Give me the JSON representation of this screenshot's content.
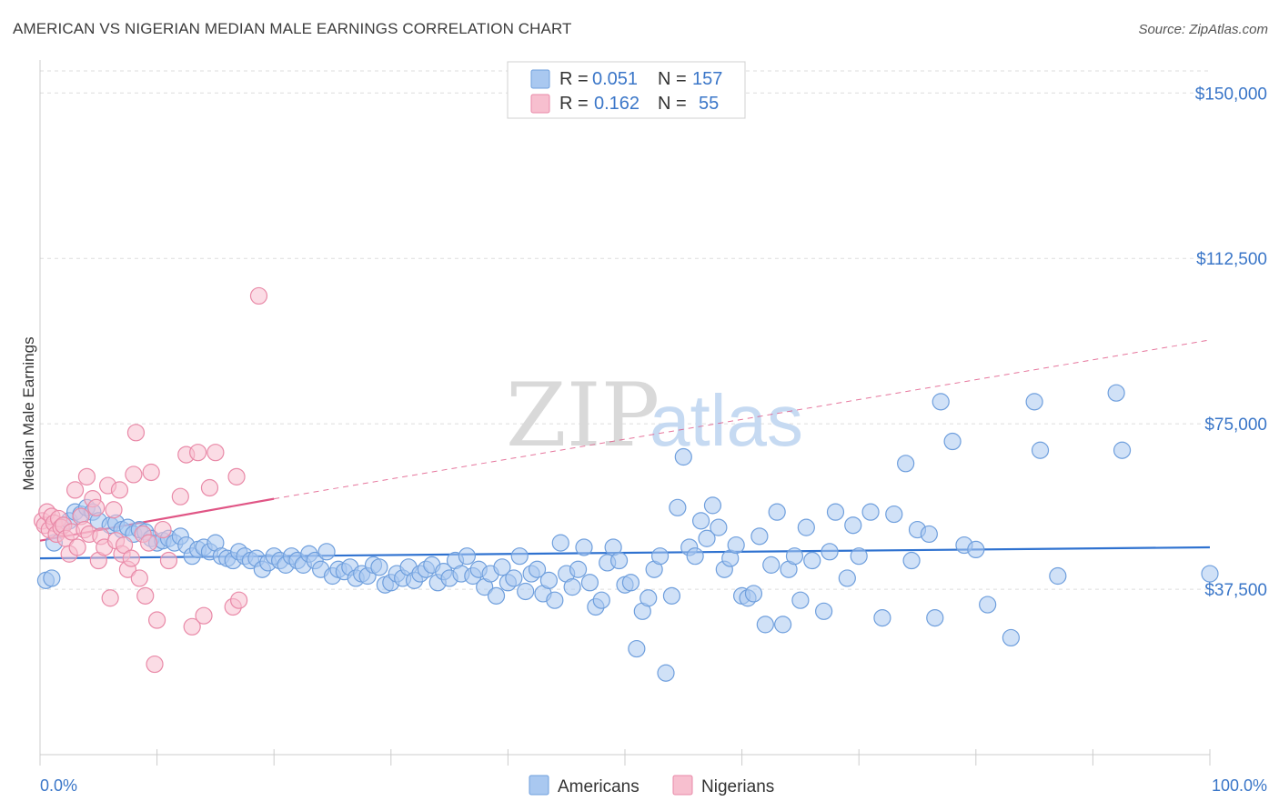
{
  "title": "AMERICAN VS NIGERIAN MEDIAN MALE EARNINGS CORRELATION CHART",
  "source": "Source: ZipAtlas.com",
  "watermark": {
    "zip": "ZIP",
    "atlas": "atlas"
  },
  "colors": {
    "americans_fill": "#a9c8f0",
    "americans_stroke": "#6f9fdd",
    "americans_line": "#2f72d0",
    "nigerians_fill": "#f7bfcf",
    "nigerians_stroke": "#e98aa8",
    "nigerians_line": "#e05585",
    "axis_text": "#3a76c8",
    "grid": "#dddddd"
  },
  "legend": {
    "r_label": "R =",
    "n_label": "N =",
    "rows": [
      {
        "series": "Americans",
        "r": "0.051",
        "n": "157"
      },
      {
        "series": "Nigerians",
        "r": "0.162",
        "n": "55"
      }
    ]
  },
  "chart_data": {
    "type": "scatter",
    "title": "AMERICAN VS NIGERIAN MEDIAN MALE EARNINGS CORRELATION CHART",
    "xlabel": "",
    "ylabel": "Median Male Earnings",
    "xlim": [
      0,
      100
    ],
    "ylim": [
      0,
      155000
    ],
    "x_tick_labels": [
      "0.0%",
      "100.0%"
    ],
    "y_ticks": [
      37500,
      75000,
      112500,
      150000
    ],
    "y_tick_labels": [
      "$37,500",
      "$75,000",
      "$112,500",
      "$150,000"
    ],
    "grid": true,
    "legend_position": "top-center",
    "series": [
      {
        "name": "Americans",
        "trend": {
          "x": [
            0,
            100
          ],
          "y": [
            44500,
            47000
          ],
          "style": "solid"
        },
        "points": [
          [
            0.5,
            39500
          ],
          [
            1,
            40000
          ],
          [
            1.2,
            48000
          ],
          [
            2,
            52000
          ],
          [
            2.5,
            53000
          ],
          [
            3,
            55000
          ],
          [
            3.5,
            54500
          ],
          [
            4,
            56000
          ],
          [
            4.5,
            55000
          ],
          [
            5,
            53000
          ],
          [
            6,
            52000
          ],
          [
            6.5,
            52500
          ],
          [
            7,
            51000
          ],
          [
            7.5,
            51500
          ],
          [
            8,
            50000
          ],
          [
            8.5,
            51000
          ],
          [
            9,
            50500
          ],
          [
            9.5,
            49000
          ],
          [
            10,
            48000
          ],
          [
            10.5,
            48500
          ],
          [
            11,
            49000
          ],
          [
            11.5,
            48000
          ],
          [
            12,
            49500
          ],
          [
            12.5,
            47500
          ],
          [
            13,
            45000
          ],
          [
            13.5,
            46500
          ],
          [
            14,
            47000
          ],
          [
            14.5,
            46000
          ],
          [
            15,
            48000
          ],
          [
            15.5,
            45000
          ],
          [
            16,
            44500
          ],
          [
            16.5,
            44000
          ],
          [
            17,
            46000
          ],
          [
            17.5,
            45000
          ],
          [
            18,
            44000
          ],
          [
            18.5,
            44500
          ],
          [
            19,
            42000
          ],
          [
            19.5,
            43500
          ],
          [
            20,
            45000
          ],
          [
            20.5,
            44000
          ],
          [
            21,
            43000
          ],
          [
            21.5,
            45000
          ],
          [
            22,
            44000
          ],
          [
            22.5,
            43000
          ],
          [
            23,
            45500
          ],
          [
            23.5,
            44000
          ],
          [
            24,
            42000
          ],
          [
            24.5,
            46000
          ],
          [
            25,
            40500
          ],
          [
            25.5,
            42000
          ],
          [
            26,
            41500
          ],
          [
            26.5,
            42500
          ],
          [
            27,
            40000
          ],
          [
            27.5,
            41000
          ],
          [
            28,
            40500
          ],
          [
            28.5,
            43000
          ],
          [
            29,
            42500
          ],
          [
            29.5,
            38500
          ],
          [
            30,
            39000
          ],
          [
            30.5,
            41000
          ],
          [
            31,
            40000
          ],
          [
            31.5,
            42500
          ],
          [
            32,
            39500
          ],
          [
            32.5,
            41000
          ],
          [
            33,
            42000
          ],
          [
            33.5,
            43000
          ],
          [
            34,
            39000
          ],
          [
            34.5,
            41500
          ],
          [
            35,
            40000
          ],
          [
            35.5,
            44000
          ],
          [
            36,
            41000
          ],
          [
            36.5,
            45000
          ],
          [
            37,
            40500
          ],
          [
            37.5,
            42000
          ],
          [
            38,
            38000
          ],
          [
            38.5,
            41000
          ],
          [
            39,
            36000
          ],
          [
            39.5,
            42500
          ],
          [
            40,
            39000
          ],
          [
            40.5,
            40000
          ],
          [
            41,
            45000
          ],
          [
            41.5,
            37000
          ],
          [
            42,
            41000
          ],
          [
            42.5,
            42000
          ],
          [
            43,
            36500
          ],
          [
            43.5,
            39500
          ],
          [
            44,
            35000
          ],
          [
            44.5,
            48000
          ],
          [
            45,
            41000
          ],
          [
            45.5,
            38000
          ],
          [
            46,
            42000
          ],
          [
            46.5,
            47000
          ],
          [
            47,
            39000
          ],
          [
            47.5,
            33500
          ],
          [
            48,
            35000
          ],
          [
            48.5,
            43500
          ],
          [
            49,
            47000
          ],
          [
            49.5,
            44000
          ],
          [
            50,
            38500
          ],
          [
            50.5,
            39000
          ],
          [
            51,
            24000
          ],
          [
            51.5,
            32500
          ],
          [
            52,
            35500
          ],
          [
            52.5,
            42000
          ],
          [
            53,
            45000
          ],
          [
            53.5,
            18500
          ],
          [
            54,
            36000
          ],
          [
            54.5,
            56000
          ],
          [
            55,
            67500
          ],
          [
            55.5,
            47000
          ],
          [
            56,
            45000
          ],
          [
            56.5,
            53000
          ],
          [
            57,
            49000
          ],
          [
            57.5,
            56500
          ],
          [
            58,
            51500
          ],
          [
            58.5,
            42000
          ],
          [
            59,
            44500
          ],
          [
            59.5,
            47500
          ],
          [
            60,
            36000
          ],
          [
            60.5,
            35500
          ],
          [
            61,
            36500
          ],
          [
            61.5,
            49500
          ],
          [
            62,
            29500
          ],
          [
            62.5,
            43000
          ],
          [
            63,
            55000
          ],
          [
            63.5,
            29500
          ],
          [
            64,
            42000
          ],
          [
            64.5,
            45000
          ],
          [
            65,
            35000
          ],
          [
            65.5,
            51500
          ],
          [
            66,
            44000
          ],
          [
            67,
            32500
          ],
          [
            67.5,
            46000
          ],
          [
            68,
            55000
          ],
          [
            69,
            40000
          ],
          [
            69.5,
            52000
          ],
          [
            70,
            45000
          ],
          [
            71,
            55000
          ],
          [
            72,
            31000
          ],
          [
            73,
            54500
          ],
          [
            74,
            66000
          ],
          [
            74.5,
            44000
          ],
          [
            75,
            51000
          ],
          [
            76,
            50000
          ],
          [
            76.5,
            31000
          ],
          [
            77,
            80000
          ],
          [
            78,
            71000
          ],
          [
            79,
            47500
          ],
          [
            80,
            46500
          ],
          [
            81,
            34000
          ],
          [
            83,
            26500
          ],
          [
            85,
            80000
          ],
          [
            85.5,
            69000
          ],
          [
            87,
            40500
          ],
          [
            92,
            82000
          ],
          [
            92.5,
            69000
          ],
          [
            100,
            41000
          ]
        ]
      },
      {
        "name": "Nigerians",
        "trend": {
          "x": [
            0,
            20
          ],
          "y": [
            48500,
            58000
          ],
          "style": "solid",
          "extended_to": [
            100,
            94000
          ]
        },
        "points": [
          [
            0.2,
            53000
          ],
          [
            0.4,
            52000
          ],
          [
            0.6,
            55000
          ],
          [
            0.8,
            51000
          ],
          [
            1,
            54000
          ],
          [
            1.2,
            52500
          ],
          [
            1.4,
            50000
          ],
          [
            1.6,
            53500
          ],
          [
            1.8,
            51500
          ],
          [
            2,
            52000
          ],
          [
            2.2,
            49000
          ],
          [
            2.5,
            45500
          ],
          [
            2.7,
            50500
          ],
          [
            3,
            60000
          ],
          [
            3.2,
            47000
          ],
          [
            3.5,
            54000
          ],
          [
            3.8,
            51000
          ],
          [
            4,
            63000
          ],
          [
            4.2,
            50000
          ],
          [
            4.5,
            58000
          ],
          [
            4.8,
            56000
          ],
          [
            5,
            44000
          ],
          [
            5.2,
            49500
          ],
          [
            5.5,
            47000
          ],
          [
            5.8,
            61000
          ],
          [
            6,
            35500
          ],
          [
            6.3,
            55500
          ],
          [
            6.5,
            48500
          ],
          [
            6.8,
            60000
          ],
          [
            7,
            45500
          ],
          [
            7.2,
            47500
          ],
          [
            7.5,
            42000
          ],
          [
            7.8,
            44500
          ],
          [
            8,
            63500
          ],
          [
            8.2,
            73000
          ],
          [
            8.5,
            40000
          ],
          [
            8.8,
            50000
          ],
          [
            9,
            36000
          ],
          [
            9.3,
            48000
          ],
          [
            9.5,
            64000
          ],
          [
            9.8,
            20500
          ],
          [
            10,
            30500
          ],
          [
            10.5,
            51000
          ],
          [
            11,
            44000
          ],
          [
            12,
            58500
          ],
          [
            12.5,
            68000
          ],
          [
            13,
            29000
          ],
          [
            13.5,
            68500
          ],
          [
            14,
            31500
          ],
          [
            14.5,
            60500
          ],
          [
            15,
            68500
          ],
          [
            16.5,
            33500
          ],
          [
            16.8,
            63000
          ],
          [
            17,
            35000
          ],
          [
            18.7,
            104000
          ]
        ]
      }
    ]
  }
}
